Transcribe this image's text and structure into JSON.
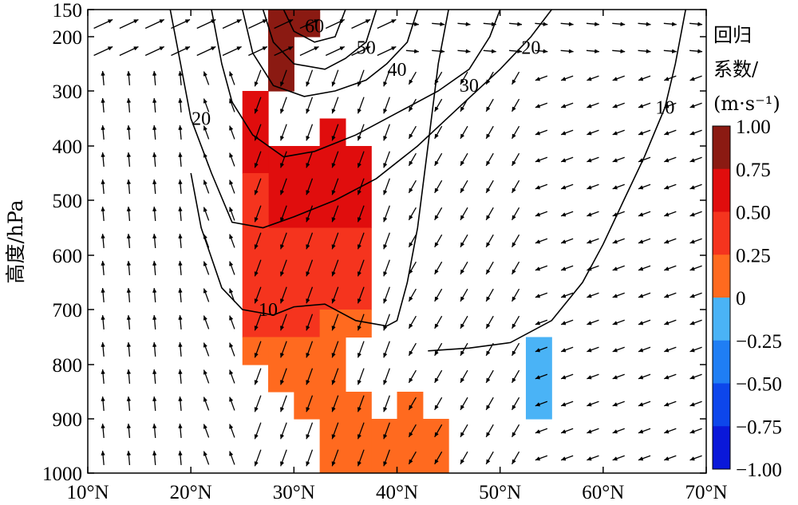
{
  "chart_data": {
    "type": "heatmap",
    "title": "",
    "xlabel": "",
    "ylabel": "高度/hPa",
    "x_ticks": [
      "10°N",
      "20°N",
      "30°N",
      "40°N",
      "50°N",
      "60°N",
      "70°N"
    ],
    "x_tick_values": [
      10,
      20,
      30,
      40,
      50,
      60,
      70
    ],
    "xlim": [
      10,
      70
    ],
    "y_ticks": [
      "150",
      "200",
      "300",
      "400",
      "500",
      "600",
      "700",
      "800",
      "900",
      "1000"
    ],
    "y_tick_values": [
      150,
      200,
      300,
      400,
      500,
      600,
      700,
      800,
      900,
      1000
    ],
    "ylim": [
      1000,
      150
    ],
    "colorbar": {
      "title_lines": [
        "回归",
        "系数/",
        "(m·s⁻¹)"
      ],
      "tick_labels": [
        "1.00",
        "0.75",
        "0.50",
        "0.25",
        "0",
        "−0.25",
        "−0.50",
        "−0.75",
        "−1.00"
      ],
      "tick_values": [
        1.0,
        0.75,
        0.5,
        0.25,
        0,
        -0.25,
        -0.5,
        -0.75,
        -1.0
      ],
      "colors": [
        "#8b1a12",
        "#e00d0d",
        "#f5341e",
        "#ff6a1f",
        "#4ab3f6",
        "#1f7ef4",
        "#0d46eb",
        "#0a18d9"
      ]
    },
    "shaded_cells": [
      {
        "lat": [
          27.5,
          30
        ],
        "p": [
          150,
          200
        ],
        "value": 0.9
      },
      {
        "lat": [
          30,
          32.5
        ],
        "p": [
          150,
          200
        ],
        "value": 0.9
      },
      {
        "lat": [
          27.5,
          30
        ],
        "p": [
          200,
          300
        ],
        "value": 0.9
      },
      {
        "lat": [
          25,
          27.5
        ],
        "p": [
          300,
          450
        ],
        "value": 0.6
      },
      {
        "lat": [
          32.5,
          35
        ],
        "p": [
          350,
          400
        ],
        "value": 0.6
      },
      {
        "lat": [
          27.5,
          37.5
        ],
        "p": [
          400,
          550
        ],
        "value": 0.6
      },
      {
        "lat": [
          25,
          27.5
        ],
        "p": [
          450,
          750
        ],
        "value": 0.4
      },
      {
        "lat": [
          27.5,
          37.5
        ],
        "p": [
          550,
          700
        ],
        "value": 0.4
      },
      {
        "lat": [
          27.5,
          32.5
        ],
        "p": [
          700,
          750
        ],
        "value": 0.4
      },
      {
        "lat": [
          32.5,
          37.5
        ],
        "p": [
          700,
          750
        ],
        "value": 0.15
      },
      {
        "lat": [
          25,
          27.5
        ],
        "p": [
          750,
          800
        ],
        "value": 0.15
      },
      {
        "lat": [
          27.5,
          35
        ],
        "p": [
          750,
          850
        ],
        "value": 0.15
      },
      {
        "lat": [
          30,
          35
        ],
        "p": [
          850,
          900
        ],
        "value": 0.15
      },
      {
        "lat": [
          32.5,
          37.5
        ],
        "p": [
          850,
          1000
        ],
        "value": 0.15
      },
      {
        "lat": [
          37.5,
          40
        ],
        "p": [
          900,
          1000
        ],
        "value": 0.15
      },
      {
        "lat": [
          40,
          42.5
        ],
        "p": [
          850,
          1000
        ],
        "value": 0.15
      },
      {
        "lat": [
          42.5,
          45
        ],
        "p": [
          900,
          1000
        ],
        "value": 0.15
      },
      {
        "lat": [
          52.5,
          55
        ],
        "p": [
          750,
          900
        ],
        "value": -0.1
      }
    ],
    "contours": [
      {
        "level": "10",
        "label_at": [
          27.5,
          700
        ],
        "points": [
          [
            45,
            150
          ],
          [
            44,
            250
          ],
          [
            43,
            400
          ],
          [
            42,
            550
          ],
          [
            41,
            650
          ],
          [
            40,
            720
          ],
          [
            39,
            730
          ],
          [
            36,
            720
          ],
          [
            33,
            690
          ],
          [
            30,
            695
          ],
          [
            28,
            710
          ],
          [
            25,
            700
          ],
          [
            23,
            660
          ],
          [
            21,
            550
          ],
          [
            20,
            450
          ]
        ]
      },
      {
        "lat_note": "",
        "level": "10",
        "label_at": [
          66,
          330
        ],
        "points": [
          [
            68,
            150
          ],
          [
            67,
            250
          ],
          [
            66,
            330
          ],
          [
            64,
            420
          ],
          [
            62,
            500
          ],
          [
            60,
            580
          ],
          [
            58,
            650
          ],
          [
            55,
            720
          ],
          [
            51,
            760
          ],
          [
            47,
            770
          ],
          [
            43,
            775
          ]
        ]
      },
      {
        "level": "20",
        "label_at": [
          21,
          350
        ],
        "points": [
          [
            18,
            150
          ],
          [
            19,
            250
          ],
          [
            20,
            350
          ],
          [
            22,
            450
          ],
          [
            24,
            540
          ],
          [
            27,
            550
          ],
          [
            30,
            530
          ],
          [
            34,
            500
          ],
          [
            38,
            460
          ],
          [
            42,
            400
          ],
          [
            46,
            330
          ],
          [
            50,
            260
          ],
          [
            53,
            200
          ],
          [
            55,
            150
          ]
        ]
      },
      {
        "level": "20",
        "label_at": [
          53,
          220
        ],
        "points": []
      },
      {
        "level": "30",
        "label_at": [
          47,
          290
        ],
        "points": [
          [
            22,
            150
          ],
          [
            23,
            250
          ],
          [
            24,
            320
          ],
          [
            26,
            380
          ],
          [
            29,
            420
          ],
          [
            32,
            410
          ],
          [
            36,
            380
          ],
          [
            40,
            340
          ],
          [
            44,
            300
          ],
          [
            47,
            260
          ],
          [
            49,
            200
          ],
          [
            50,
            150
          ]
        ]
      },
      {
        "level": "40",
        "label_at": [
          40,
          260
        ],
        "points": [
          [
            25,
            150
          ],
          [
            26,
            230
          ],
          [
            28,
            290
          ],
          [
            31,
            310
          ],
          [
            34,
            300
          ],
          [
            37,
            280
          ],
          [
            39,
            250
          ],
          [
            41,
            210
          ],
          [
            42,
            150
          ]
        ]
      },
      {
        "level": "50",
        "label_at": [
          37,
          220
        ],
        "points": [
          [
            27,
            150
          ],
          [
            28,
            210
          ],
          [
            30,
            250
          ],
          [
            33,
            260
          ],
          [
            35,
            240
          ],
          [
            37,
            210
          ],
          [
            38,
            150
          ]
        ]
      },
      {
        "level": "60",
        "label_at": [
          32,
          180
        ],
        "points": [
          [
            29,
            150
          ],
          [
            30,
            190
          ],
          [
            32,
            210
          ],
          [
            34,
            200
          ],
          [
            35,
            150
          ]
        ]
      }
    ]
  },
  "colors": {
    "axis": "#000000",
    "contour": "#000000",
    "arrow": "#000000"
  }
}
